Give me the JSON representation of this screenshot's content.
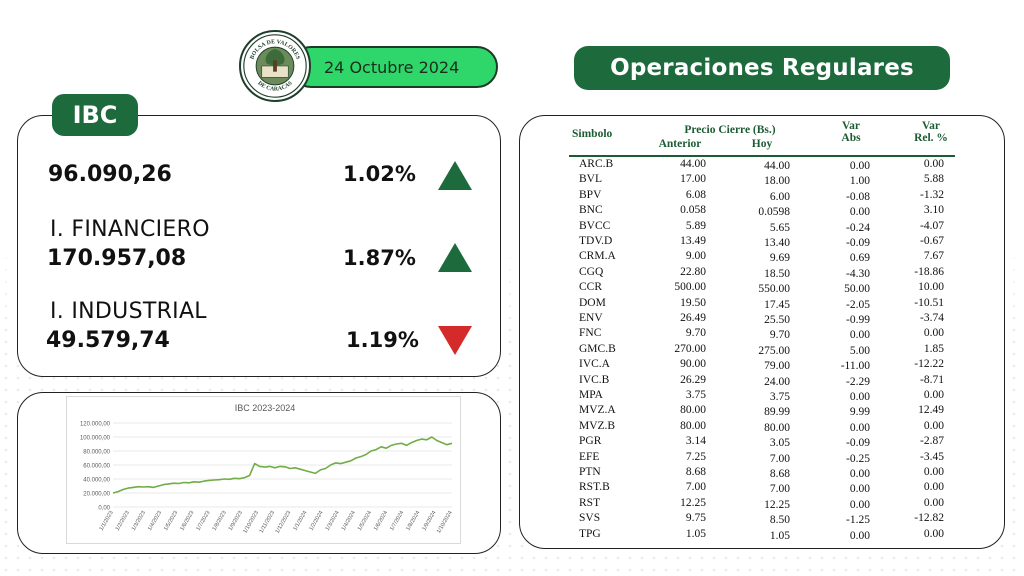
{
  "header": {
    "date": "24 Octubre 2024",
    "title": "Operaciones Regulares",
    "logo_text": "BOLSA DE VALORES DE CARACAS"
  },
  "ibc": {
    "tag": "IBC",
    "indices": [
      {
        "label": "",
        "value": "96.090,26",
        "pct": "1.02%",
        "direction": "up"
      },
      {
        "label": "I. FINANCIERO",
        "value": "170.957,08",
        "pct": "1.87%",
        "direction": "up"
      },
      {
        "label": "I. INDUSTRIAL",
        "value": "49.579,74",
        "pct": "1.19%",
        "direction": "down"
      }
    ]
  },
  "colors": {
    "brand_green": "#1d6b3d",
    "date_green": "#2fd66a",
    "down_red": "#d42a2a",
    "line_green": "#70ad47"
  },
  "table": {
    "headers": {
      "symbol": "Simbolo",
      "price": "Precio Cierre (Bs.)",
      "prev": "Anterior",
      "today": "Hoy",
      "var_abs": "Var\nAbs",
      "var_rel": "Var\nRel. %"
    },
    "rows": [
      [
        "ARC.B",
        "44.00",
        "44.00",
        "0.00",
        "0.00"
      ],
      [
        "BVL",
        "17.00",
        "18.00",
        "1.00",
        "5.88"
      ],
      [
        "BPV",
        "6.08",
        "6.00",
        "-0.08",
        "-1.32"
      ],
      [
        "BNC",
        "0.058",
        "0.0598",
        "0.00",
        "3.10"
      ],
      [
        "BVCC",
        "5.89",
        "5.65",
        "-0.24",
        "-4.07"
      ],
      [
        "TDV.D",
        "13.49",
        "13.40",
        "-0.09",
        "-0.67"
      ],
      [
        "CRM.A",
        "9.00",
        "9.69",
        "0.69",
        "7.67"
      ],
      [
        "CGQ",
        "22.80",
        "18.50",
        "-4.30",
        "-18.86"
      ],
      [
        "CCR",
        "500.00",
        "550.00",
        "50.00",
        "10.00"
      ],
      [
        "DOM",
        "19.50",
        "17.45",
        "-2.05",
        "-10.51"
      ],
      [
        "ENV",
        "26.49",
        "25.50",
        "-0.99",
        "-3.74"
      ],
      [
        "FNC",
        "9.70",
        "9.70",
        "0.00",
        "0.00"
      ],
      [
        "GMC.B",
        "270.00",
        "275.00",
        "5.00",
        "1.85"
      ],
      [
        "IVC.A",
        "90.00",
        "79.00",
        "-11.00",
        "-12.22"
      ],
      [
        "IVC.B",
        "26.29",
        "24.00",
        "-2.29",
        "-8.71"
      ],
      [
        "MPA",
        "3.75",
        "3.75",
        "0.00",
        "0.00"
      ],
      [
        "MVZ.A",
        "80.00",
        "89.99",
        "9.99",
        "12.49"
      ],
      [
        "MVZ.B",
        "80.00",
        "80.00",
        "0.00",
        "0.00"
      ],
      [
        "PGR",
        "3.14",
        "3.05",
        "-0.09",
        "-2.87"
      ],
      [
        "EFE",
        "7.25",
        "7.00",
        "-0.25",
        "-3.45"
      ],
      [
        "PTN",
        "8.68",
        "8.68",
        "0.00",
        "0.00"
      ],
      [
        "RST.B",
        "7.00",
        "7.00",
        "0.00",
        "0.00"
      ],
      [
        "RST",
        "12.25",
        "12.25",
        "0.00",
        "0.00"
      ],
      [
        "SVS",
        "9.75",
        "8.50",
        "-1.25",
        "-12.82"
      ],
      [
        "TPG",
        "1.05",
        "1.05",
        "0.00",
        "0.00"
      ]
    ]
  },
  "chart_data": {
    "type": "line",
    "title": "IBC 2023-2024",
    "xlabel": "",
    "ylabel": "",
    "ylim": [
      0,
      120000
    ],
    "y_ticks": [
      "0,00",
      "20.000,00",
      "40.000,00",
      "60.000,00",
      "80.000,00",
      "100.000,00",
      "120.000,00"
    ],
    "x_ticks": [
      "1/1/2023",
      "1/2/2023",
      "1/3/2023",
      "1/4/2023",
      "1/5/2023",
      "1/6/2023",
      "1/7/2023",
      "1/8/2023",
      "1/9/2023",
      "1/10/2023",
      "1/11/2023",
      "1/12/2023",
      "1/1/2024",
      "1/2/2024",
      "1/3/2024",
      "1/4/2024",
      "1/5/2024",
      "1/6/2024",
      "1/7/2024",
      "1/8/2024",
      "1/9/2024",
      "1/10/2024"
    ],
    "grid": true,
    "series": [
      {
        "values": [
          20000,
          22000,
          25000,
          27000,
          28000,
          29000,
          28500,
          29000,
          28000,
          30000,
          32000,
          33000,
          34000,
          33500,
          35000,
          34500,
          36000,
          35500,
          37000,
          38000,
          38500,
          39000,
          40000,
          39500,
          41000,
          40500,
          42000,
          45000,
          62000,
          58000,
          57000,
          58000,
          56000,
          58000,
          57500,
          55000,
          56000,
          54000,
          52000,
          50000,
          48000,
          53000,
          55000,
          60000,
          63000,
          62000,
          64000,
          66000,
          70000,
          72000,
          75000,
          80000,
          82000,
          86000,
          84000,
          88000,
          90000,
          91000,
          88000,
          92000,
          95000,
          97000,
          96000,
          100000,
          95000,
          92000,
          89000,
          91000
        ]
      }
    ]
  }
}
